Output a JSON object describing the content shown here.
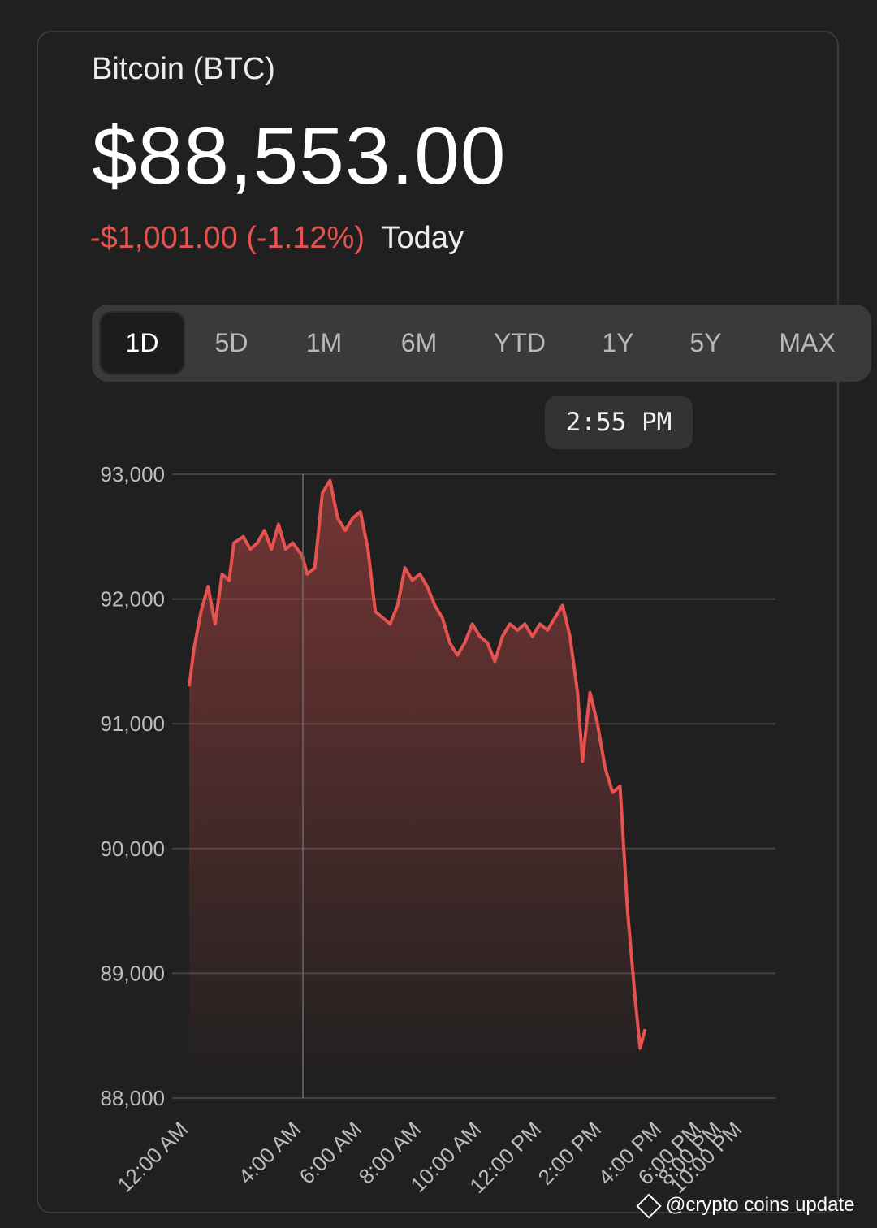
{
  "header": {
    "title": "Bitcoin (BTC)",
    "price": "$88,553.00",
    "change": "-$1,001.00 (-1.12%)",
    "period_label": "Today"
  },
  "ranges": {
    "items": [
      "1D",
      "5D",
      "1M",
      "6M",
      "YTD",
      "1Y",
      "5Y",
      "MAX"
    ],
    "selected": "1D"
  },
  "tooltip": {
    "time": "2:55 PM"
  },
  "colors": {
    "line": "#e5524f",
    "negative": "#e5524f",
    "grid": "#444444",
    "background": "#202020"
  },
  "chart_data": {
    "type": "area",
    "ylim": [
      88000,
      93000
    ],
    "yticks": [
      "93,000",
      "92,000",
      "91,000",
      "90,000",
      "89,000",
      "88,000"
    ],
    "xticks": [
      "12:00 AM",
      "4:00 AM",
      "6:00 AM",
      "8:00 AM",
      "10:00 AM",
      "12:00 PM",
      "2:00 PM",
      "4:00 PM",
      "6:00 PM",
      "8:00 PM",
      "10:00 PM"
    ],
    "grid": true,
    "series": [
      {
        "points": [
          [
            "12:00 AM",
            91300
          ],
          [
            "12:10 AM",
            91600
          ],
          [
            "12:25 AM",
            91900
          ],
          [
            "12:40 AM",
            92100
          ],
          [
            "12:55 AM",
            91800
          ],
          [
            "1:10 AM",
            92200
          ],
          [
            "1:25 AM",
            92150
          ],
          [
            "1:35 AM",
            92450
          ],
          [
            "1:55 AM",
            92500
          ],
          [
            "2:10 AM",
            92400
          ],
          [
            "2:25 AM",
            92450
          ],
          [
            "2:40 AM",
            92550
          ],
          [
            "2:55 AM",
            92400
          ],
          [
            "3:10 AM",
            92600
          ],
          [
            "3:25 AM",
            92400
          ],
          [
            "3:40 AM",
            92450
          ],
          [
            "4:00 AM",
            92350
          ],
          [
            "4:10 AM",
            92200
          ],
          [
            "4:25 AM",
            92250
          ],
          [
            "4:40 AM",
            92850
          ],
          [
            "4:55 AM",
            92950
          ],
          [
            "5:10 AM",
            92650
          ],
          [
            "5:25 AM",
            92550
          ],
          [
            "5:40 AM",
            92650
          ],
          [
            "5:55 AM",
            92700
          ],
          [
            "6:10 AM",
            92400
          ],
          [
            "6:25 AM",
            91900
          ],
          [
            "6:40 AM",
            91850
          ],
          [
            "6:55 AM",
            91800
          ],
          [
            "7:10 AM",
            91950
          ],
          [
            "7:25 AM",
            92250
          ],
          [
            "7:40 AM",
            92150
          ],
          [
            "7:55 AM",
            92200
          ],
          [
            "8:10 AM",
            92100
          ],
          [
            "8:25 AM",
            91950
          ],
          [
            "8:40 AM",
            91850
          ],
          [
            "8:55 AM",
            91650
          ],
          [
            "9:10 AM",
            91550
          ],
          [
            "9:25 AM",
            91650
          ],
          [
            "9:40 AM",
            91800
          ],
          [
            "9:55 AM",
            91700
          ],
          [
            "10:10 AM",
            91650
          ],
          [
            "10:25 AM",
            91500
          ],
          [
            "10:40 AM",
            91700
          ],
          [
            "10:55 AM",
            91800
          ],
          [
            "11:10 AM",
            91750
          ],
          [
            "11:25 AM",
            91800
          ],
          [
            "11:40 AM",
            91700
          ],
          [
            "11:55 AM",
            91800
          ],
          [
            "12:10 PM",
            91750
          ],
          [
            "12:25 PM",
            91850
          ],
          [
            "12:40 PM",
            91950
          ],
          [
            "12:55 PM",
            91700
          ],
          [
            "1:10 PM",
            91250
          ],
          [
            "1:20 PM",
            90700
          ],
          [
            "1:35 PM",
            91250
          ],
          [
            "1:50 PM",
            91000
          ],
          [
            "2:05 PM",
            90650
          ],
          [
            "2:20 PM",
            90450
          ],
          [
            "2:35 PM",
            90500
          ],
          [
            "2:50 PM",
            89500
          ],
          [
            "3:05 PM",
            88800
          ],
          [
            "3:15 PM",
            88400
          ],
          [
            "3:25 PM",
            88553
          ]
        ]
      }
    ]
  },
  "watermark": "@crypto coins update"
}
